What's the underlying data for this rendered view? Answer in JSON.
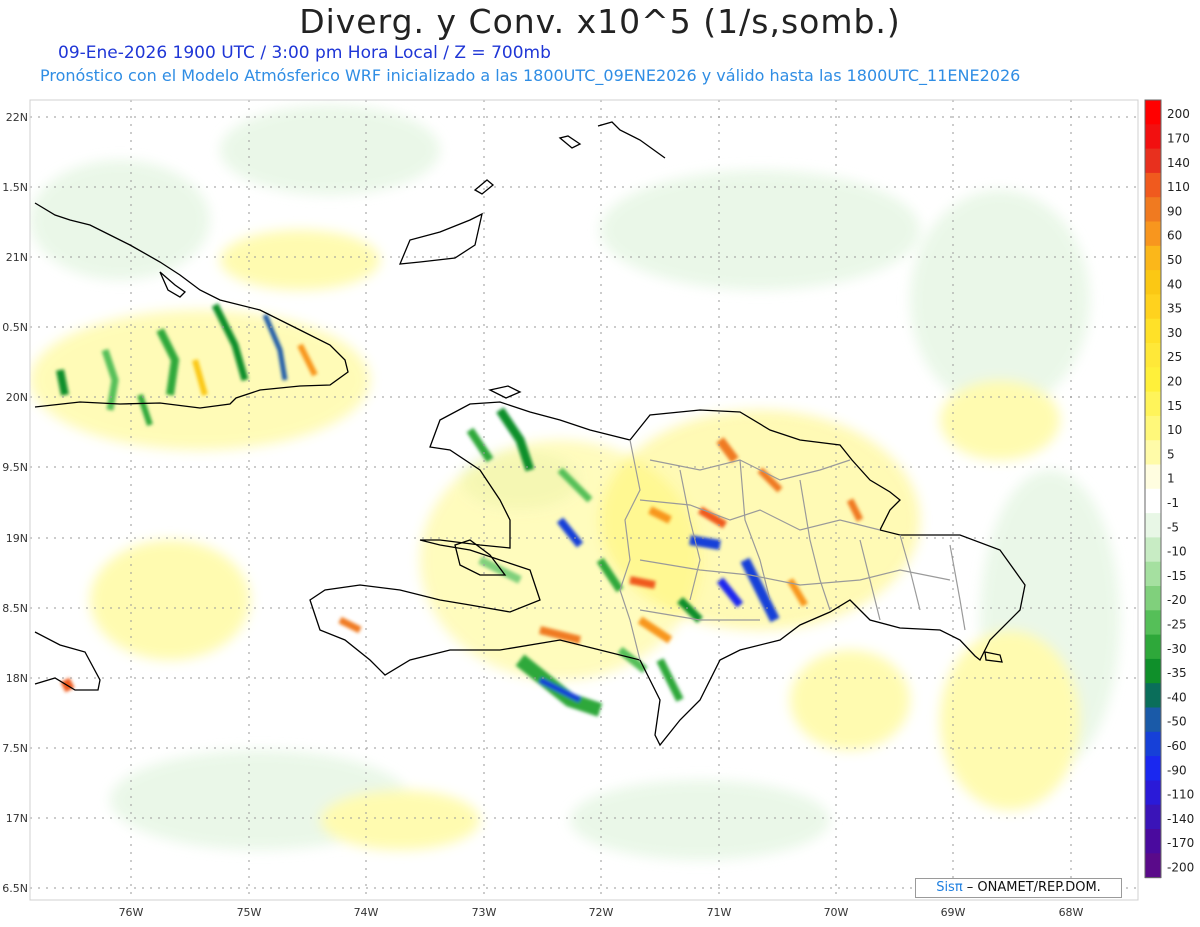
{
  "header": {
    "title": "Diverg. y Conv. x10^5 (1/s,somb.)",
    "subtitle_time": "09-Ene-2026  1900 UTC / 3:00 pm Hora Local / Z = 700mb",
    "subtitle_model": "Pronóstico con el Modelo Atmósferico WRF inicializado a las 1800UTC_09ENE2026 y válido hasta las  1800UTC_11ENE2026"
  },
  "axes": {
    "lat_labels": [
      "22N",
      "1.5N",
      "21N",
      "0.5N",
      "20N",
      "9.5N",
      "19N",
      "8.5N",
      "18N",
      "7.5N",
      "17N",
      "6.5N"
    ],
    "lon_labels": [
      "76W",
      "75W",
      "74W",
      "73W",
      "72W",
      "71W",
      "70W",
      "69W",
      "68W"
    ]
  },
  "colorbar": {
    "labels": [
      "200",
      "170",
      "140",
      "110",
      "90",
      "60",
      "50",
      "40",
      "35",
      "30",
      "25",
      "20",
      "15",
      "10",
      "5",
      "1",
      "-1",
      "-5",
      "-10",
      "-15",
      "-20",
      "-25",
      "-30",
      "-35",
      "-40",
      "-50",
      "-60",
      "-90",
      "-110",
      "-140",
      "-170",
      "-200"
    ],
    "colors": [
      "#ff0000",
      "#f21010",
      "#e8301e",
      "#f05a1e",
      "#f07a20",
      "#f8961e",
      "#fbb71a",
      "#fbc814",
      "#ffd21e",
      "#ffe128",
      "#ffe838",
      "#fff03a",
      "#fff45a",
      "#fff87a",
      "#fffba8",
      "#fffde0",
      "#ffffff",
      "#e8f7e6",
      "#c8ecc4",
      "#a5e0a0",
      "#80d07c",
      "#55bf58",
      "#2ea83a",
      "#0f8f2a",
      "#0a6e5a",
      "#1a5aa8",
      "#1640d8",
      "#1a28f0",
      "#2a1ad8",
      "#3a14b8",
      "#4a0a9e",
      "#5a0a8a"
    ]
  },
  "credit": {
    "brand": "Sisπ",
    "text": " – ONAMET/REP.DOM."
  }
}
